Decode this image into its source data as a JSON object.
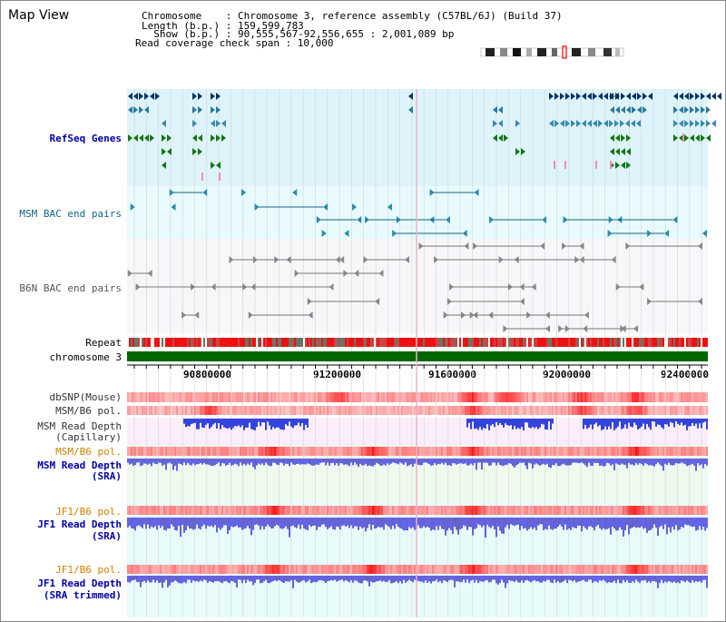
{
  "title": "Map View",
  "header": {
    "line1": "Chromosome    : Chromosome 3, reference assembly (C57BL/6J) (Build 37)",
    "line2": "Length (b.p.) : 159,599,783",
    "line3": "  Show (b.p.) : 90,555,567-92,556,655 : 2,001,089 bp",
    "line4": "Read coverage check span : 10,000"
  },
  "tracks": {
    "refseq": "RefSeq Genes",
    "msm_bac": "MSM BAC end pairs",
    "b6n_bac": "B6N BAC end pairs",
    "repeat": "Repeat",
    "chromosome": "chromosome 3",
    "dbsnp": "dbSNP(Mouse)",
    "msm_b6_pol_1": "MSM/B6 pol.",
    "msm_depth_cap_1": "MSM Read Depth",
    "msm_depth_cap_2": "(Capillary)",
    "msm_b6_pol_2": "MSM/B6 pol.",
    "msm_depth_sra_1": "MSM Read Depth",
    "msm_depth_sra_2": "(SRA)",
    "jf1_b6_pol_1": "JF1/B6 pol.",
    "jf1_depth_sra_1": "JF1 Read Depth",
    "jf1_depth_sra_2": "(SRA)",
    "jf1_b6_pol_2": "JF1/B6 pol.",
    "jf1_depth_trim_1": "JF1 Read Depth",
    "jf1_depth_trim_2": "(SRA trimmed)"
  },
  "axis": {
    "ticks": [
      "90800000",
      "91200000",
      "91600000",
      "92000000",
      "92400000"
    ]
  },
  "colors": {
    "refseq_bg": "#dff3fb",
    "msm_bac_bg": "#e8fafd",
    "b6n_bac_bg": "#f6f6f9",
    "refseq_label": "#0000aa",
    "msm_bac_label": "#116688",
    "b6n_bac_label": "#555555",
    "orange_label": "#d08000",
    "blue_label": "#0000aa",
    "chromosome_bar": "#006600"
  }
}
